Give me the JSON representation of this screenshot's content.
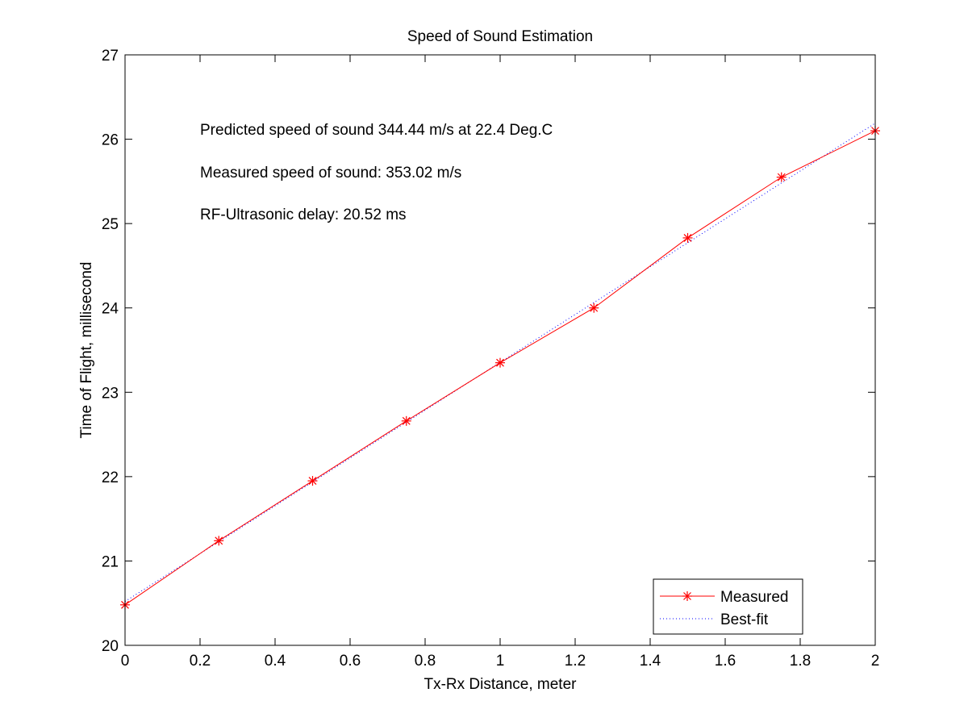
{
  "chart_data": {
    "type": "line",
    "title": "Speed of Sound Estimation",
    "xlabel": "Tx-Rx Distance, meter",
    "ylabel": "Time of Flight, millisecond",
    "xlim": [
      0,
      2
    ],
    "ylim": [
      20,
      27
    ],
    "xticks": [
      0,
      0.2,
      0.4,
      0.6,
      0.8,
      1,
      1.2,
      1.4,
      1.6,
      1.8,
      2
    ],
    "yticks": [
      20,
      21,
      22,
      23,
      24,
      25,
      26,
      27
    ],
    "grid": false,
    "legend_position": "bottom-right",
    "annotations": [
      "Predicted speed of sound 344.44 m/s at 22.4 Deg.C",
      "Measured speed of sound: 353.02 m/s",
      "RF-Ultrasonic delay: 20.52 ms"
    ],
    "series": [
      {
        "name": "Measured",
        "color": "#ff0000",
        "line_style": "solid",
        "marker": "asterisk",
        "x": [
          0,
          0.25,
          0.5,
          0.75,
          1,
          1.25,
          1.5,
          1.75,
          2
        ],
        "y": [
          20.48,
          21.24,
          21.95,
          22.66,
          23.35,
          24.0,
          24.83,
          25.55,
          26.1
        ]
      },
      {
        "name": "Best-fit",
        "color": "#0000ff",
        "line_style": "dotted",
        "marker": "none",
        "x": [
          0,
          2
        ],
        "y": [
          20.52,
          26.19
        ]
      }
    ]
  }
}
